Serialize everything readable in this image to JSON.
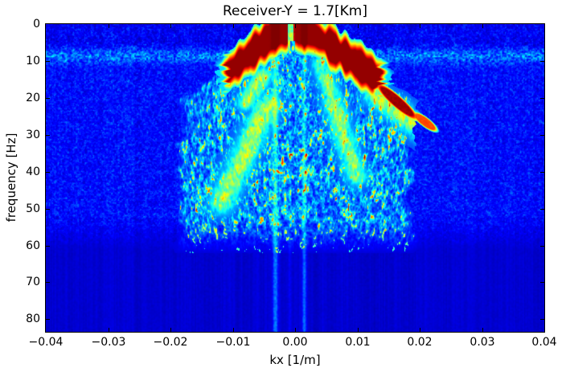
{
  "figure": {
    "title": "Receiver-Y = 1.7[Km]",
    "background": "#ffffff"
  },
  "axes": {
    "xlabel": "kx [1/m]",
    "ylabel": "frequency [Hz]",
    "x_range": [
      -0.04,
      0.04
    ],
    "y_range": [
      0,
      83.4
    ],
    "y_inverted": true,
    "spine_color": "#000000",
    "tick_color": "#000000",
    "x_ticks": [
      {
        "value": -0.04,
        "label": "−0.04"
      },
      {
        "value": -0.03,
        "label": "−0.03"
      },
      {
        "value": -0.02,
        "label": "−0.02"
      },
      {
        "value": -0.01,
        "label": "−0.01"
      },
      {
        "value": 0.0,
        "label": "0.00"
      },
      {
        "value": 0.01,
        "label": "0.01"
      },
      {
        "value": 0.02,
        "label": "0.02"
      },
      {
        "value": 0.03,
        "label": "0.03"
      },
      {
        "value": 0.04,
        "label": "0.04"
      }
    ],
    "y_ticks": [
      {
        "value": 0,
        "label": "0"
      },
      {
        "value": 10,
        "label": "10"
      },
      {
        "value": 20,
        "label": "20"
      },
      {
        "value": 30,
        "label": "30"
      },
      {
        "value": 40,
        "label": "40"
      },
      {
        "value": 50,
        "label": "50"
      },
      {
        "value": 60,
        "label": "60"
      },
      {
        "value": 70,
        "label": "70"
      },
      {
        "value": 80,
        "label": "80"
      }
    ]
  },
  "chart_data": {
    "type": "heatmap",
    "title": "Receiver-Y = 1.7[Km]",
    "xlabel": "kx [1/m]",
    "ylabel": "frequency [Hz]",
    "x_range": [
      -0.04,
      0.04
    ],
    "y_range": [
      0,
      83.4
    ],
    "colormap": "jet",
    "colors": {
      "low": "#000083",
      "background_blue": "#0000bd",
      "mid_cyan": "#00ccff",
      "high_yellow": "#ffee00",
      "peak_dark_red": "#8b0000"
    },
    "description": "Frequency-wavenumber (f-k) amplitude spectrum. Dark-red dispersion arms radiate from the apex at (kx=0, f=0) with slopes ~1150-1400 Hz per (1/m) down to ~15-24 Hz; a speckled cyan/green fan fills the cone between the arms down to ~55 Hz; a bright horizontal noise band crosses all kx near 8-9 Hz; below ~58 Hz the field is quiet dark blue except two bright vertical stripes near kx = -0.0032 and +0.0014.",
    "render": {
      "seed": 1337,
      "f_max": 83.4,
      "background": {
        "base": 0.045,
        "col_amp": 0.05,
        "pix_amp": 0.02
      },
      "ambient": {
        "amp": 0.16,
        "fade_start": 52,
        "fade_end": 61
      },
      "band": {
        "center": 8.6,
        "sigma": 1.4,
        "amp": 0.16,
        "dark_f": 5.2,
        "dark_amp": 0.02
      },
      "top_dark": {
        "below_f": 6,
        "amp": 0.028
      },
      "fan": {
        "slope": 1050,
        "k_max": 0.0192,
        "edge_noise": 0.0013,
        "fade_start": 53,
        "fade_end": 62,
        "amp": 0.62,
        "hot_amp": 0.9
      },
      "arms": [
        {
          "k0": -0.0015,
          "slope": 1400,
          "k_end": 0.0102,
          "sign": -1
        },
        {
          "k0": 0.0005,
          "slope": 1150,
          "k_end": 0.0138,
          "sign": 1
        }
      ],
      "apex": {
        "f_max": 4.5,
        "k_min": -0.0042,
        "k_max": 0.0028
      },
      "gap": {
        "k_min": -0.0012,
        "k_max": -0.0003,
        "f_max": 12
      },
      "blobs": [
        {
          "k": 0.0163,
          "f": 21.0,
          "a": 26,
          "b": 5.5,
          "rot": 0.72,
          "v": 0.95
        },
        {
          "k": 0.0208,
          "f": 26.5,
          "a": 15,
          "b": 4.5,
          "rot": 0.65,
          "v": 0.78
        }
      ],
      "streaks": [
        {
          "k1": -0.0045,
          "f1": 22,
          "k2": -0.0118,
          "f2": 48,
          "w": 11,
          "amp": 0.5
        },
        {
          "k1": -0.0052,
          "f1": 14,
          "k2": -0.0078,
          "f2": 21,
          "w": 8,
          "amp": 0.48
        },
        {
          "k1": 0.006,
          "f1": 21,
          "k2": 0.0098,
          "f2": 41,
          "w": 9,
          "amp": 0.45
        },
        {
          "k1": 0.0128,
          "f1": 19,
          "k2": 0.0215,
          "f2": 30,
          "w": 10,
          "amp": 0.5
        },
        {
          "k1": 0.004,
          "f1": 11,
          "k2": 0.0075,
          "f2": 26,
          "w": 8,
          "amp": 0.4
        }
      ],
      "stripes": [
        {
          "x": 285,
          "sigma": 2.3,
          "amp": 0.2
        },
        {
          "x": 321,
          "sigma": 1.8,
          "amp": 0.17
        },
        {
          "x": 303,
          "sigma": 1.4,
          "amp": 0.05
        }
      ]
    }
  }
}
